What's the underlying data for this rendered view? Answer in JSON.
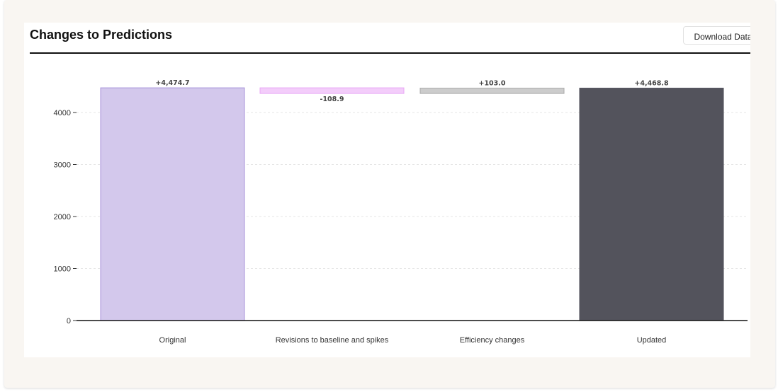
{
  "header": {
    "title": "Changes to Predictions",
    "download_label": "Download Data"
  },
  "chart_data": {
    "type": "waterfall",
    "categories": [
      "Original",
      "Revisions to baseline and spikes",
      "Efficiency changes",
      "Updated"
    ],
    "values": [
      4474.7,
      -108.9,
      103.0,
      4468.8
    ],
    "kinds": [
      "total",
      "delta",
      "delta",
      "total"
    ],
    "data_labels": [
      "+4,474.7",
      "-108.9",
      "+103.0",
      "+4,468.8"
    ],
    "yticks": [
      0,
      1000,
      2000,
      3000,
      4000
    ],
    "ylim": [
      0,
      4600
    ],
    "grid": true,
    "colors": {
      "fill": [
        "#d3c8ec",
        "#f3cdfa",
        "#cccccc",
        "#53535c"
      ],
      "stroke": [
        "#a893da",
        "#e8a8f5",
        "#aaaaaa",
        "#53535c"
      ]
    }
  }
}
